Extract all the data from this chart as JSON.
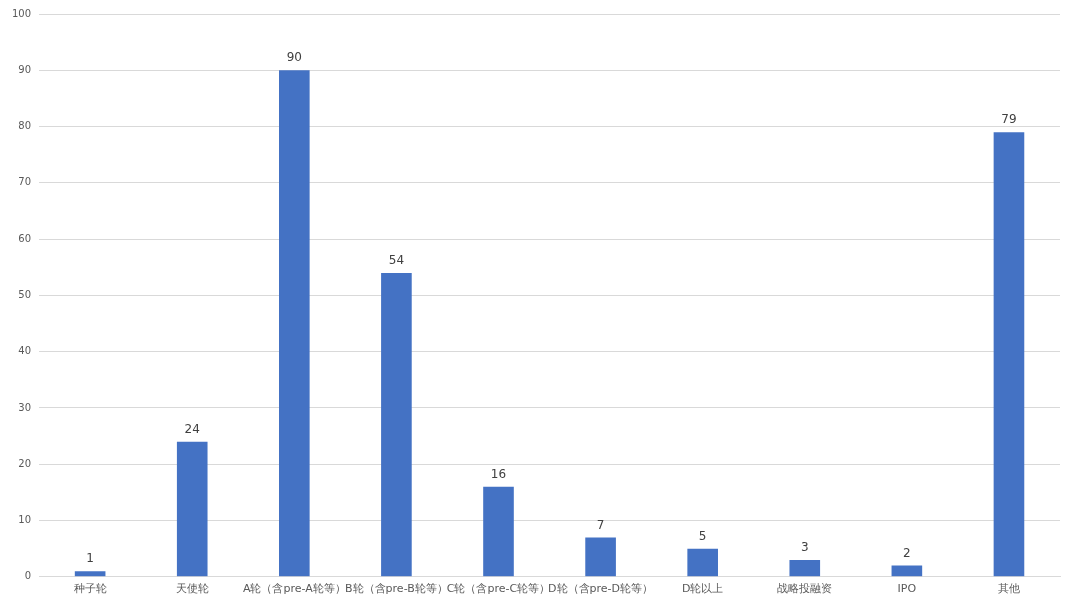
{
  "chart_data": {
    "type": "bar",
    "categories": [
      "种子轮",
      "天使轮",
      "A轮（含pre-A轮等）",
      "B轮（含pre-B轮等）",
      "C轮（含pre-C轮等）",
      "D轮（含pre-D轮等）",
      "D轮以上",
      "战略投融资",
      "IPO",
      "其他"
    ],
    "values": [
      1,
      24,
      90,
      54,
      16,
      7,
      5,
      3,
      2,
      79
    ],
    "color": "#4472c4",
    "ylim": [
      0,
      100
    ],
    "yticks": [
      0,
      10,
      20,
      30,
      40,
      50,
      60,
      70,
      80,
      90,
      100
    ],
    "grid": "y",
    "data_labels": true,
    "legend": false
  }
}
